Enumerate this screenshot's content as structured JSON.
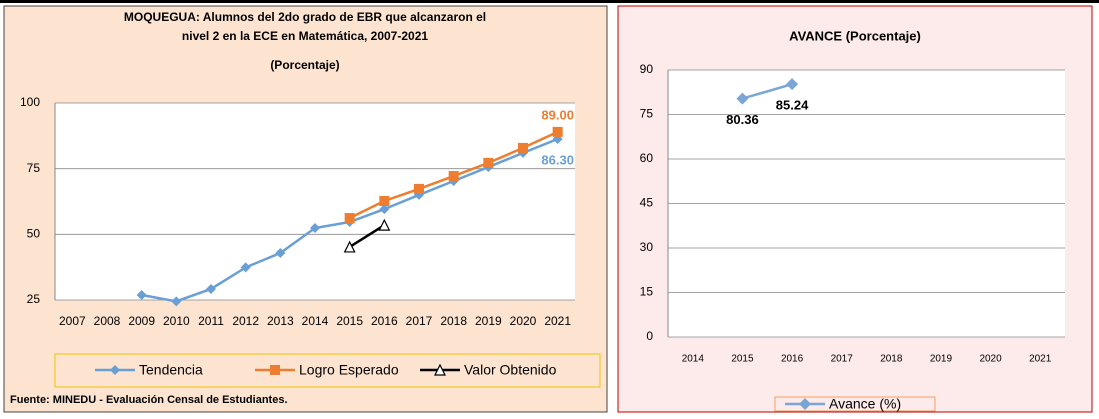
{
  "chart_data": [
    {
      "type": "line",
      "title": [
        "MOQUEGUA: Alumnos del 2do grado de EBR que alcanzaron el",
        "nivel 2 en la ECE en Matemática, 2007-2021"
      ],
      "subtitle": "(Porcentaje)",
      "categories": [
        "2007",
        "2008",
        "2009",
        "2010",
        "2011",
        "2012",
        "2013",
        "2014",
        "2015",
        "2016",
        "2017",
        "2018",
        "2019",
        "2020",
        "2021"
      ],
      "series": [
        {
          "name": "Tendencia",
          "color": "#6a9fd6",
          "marker": "diamond",
          "values": [
            null,
            null,
            26.9,
            24.5,
            29.2,
            37.4,
            42.9,
            52.4,
            54.7,
            59.6,
            65.0,
            70.3,
            75.6,
            81.0,
            86.3
          ],
          "value_labels": [
            null,
            null,
            null,
            null,
            null,
            null,
            null,
            null,
            null,
            null,
            null,
            null,
            null,
            null,
            "86.30"
          ]
        },
        {
          "name": "Logro Esperado",
          "color": "#ed7d31",
          "marker": "square",
          "values": [
            null,
            null,
            null,
            null,
            null,
            null,
            null,
            null,
            56.2,
            62.7,
            67.3,
            72.2,
            77.2,
            82.9,
            89
          ],
          "value_labels": [
            null,
            null,
            null,
            null,
            null,
            null,
            null,
            null,
            null,
            null,
            null,
            null,
            null,
            null,
            "89.00"
          ]
        },
        {
          "name": "Valor Obtenido",
          "color": "#000000",
          "marker": "triangle",
          "values": [
            null,
            null,
            null,
            null,
            null,
            null,
            null,
            null,
            45.2,
            53.5,
            null,
            null,
            null,
            null,
            null
          ]
        }
      ],
      "ylim": [
        25,
        100
      ],
      "yticks": [
        25,
        50,
        75,
        100
      ],
      "grid": true
    },
    {
      "type": "line",
      "title": [
        "AVANCE  (Porcentaje)"
      ],
      "categories": [
        "2014",
        "2015",
        "2016",
        "2017",
        "2018",
        "2019",
        "2020",
        "2021"
      ],
      "series": [
        {
          "name": "Avance (%)",
          "color": "#7aa6d6",
          "marker": "diamond",
          "values": [
            null,
            80.36,
            85.24,
            null,
            null,
            null,
            null,
            null
          ],
          "value_labels": [
            null,
            "80.36",
            "85.24",
            null,
            null,
            null,
            null,
            null
          ]
        }
      ],
      "ylim": [
        0,
        90
      ],
      "yticks": [
        0,
        15,
        30,
        45,
        60,
        75,
        90
      ],
      "grid": true
    }
  ],
  "source": "Fuente: MINEDU - Evaluación Censal de Estudiantes."
}
